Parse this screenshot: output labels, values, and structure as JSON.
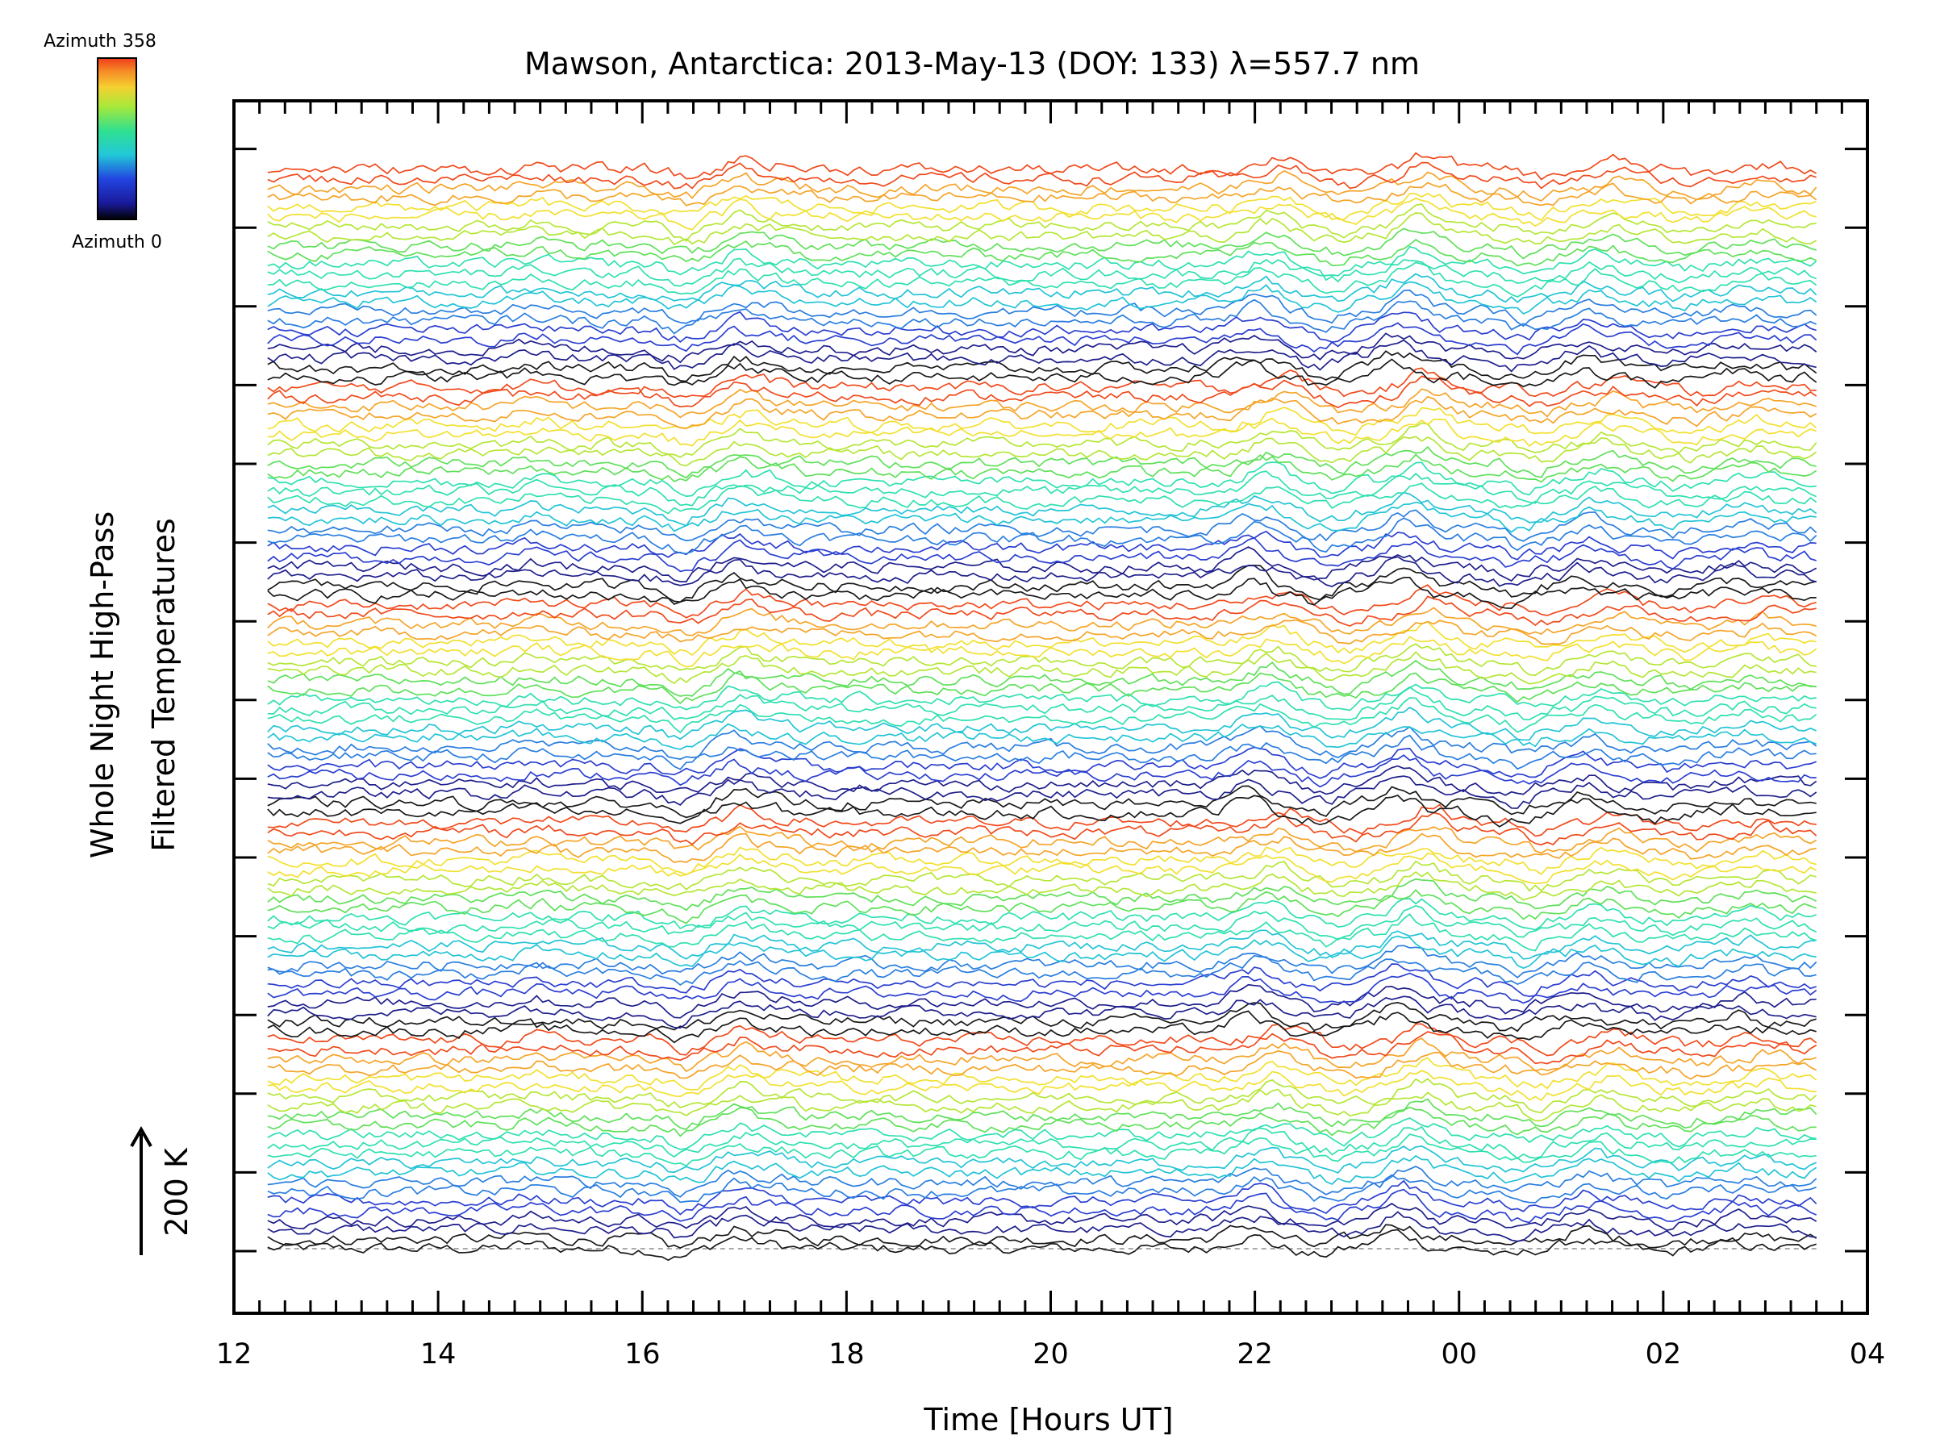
{
  "chart_data": {
    "type": "line",
    "title": "Mawson, Antarctica: 2013-May-13 (DOY: 133) λ=557.7 nm",
    "xlabel": "Time [Hours UT]",
    "ylabel_line1": "Whole Night High-Pass",
    "ylabel_line2": "Filtered Temperatures",
    "scale_label": "200 K",
    "colorbar": {
      "top_label": "Azimuth 358",
      "bottom_label": "Azimuth 0",
      "azimuth_range": [
        0,
        358
      ]
    },
    "x_tick_labels": [
      "12",
      "14",
      "16",
      "18",
      "20",
      "22",
      "00",
      "02",
      "04"
    ],
    "xlim_hours": [
      12,
      28
    ],
    "x_start_hours": 12.33,
    "x_end_hours": 27.5,
    "n_groups": 5,
    "traces_per_group": 23,
    "n_traces_total": 115,
    "features": [
      {
        "hour": 14.9,
        "amp": 0.6
      },
      {
        "hour": 16.35,
        "amp": -1.2
      },
      {
        "hour": 16.9,
        "amp": 1.5
      },
      {
        "hour": 17.25,
        "amp": 0.6
      },
      {
        "hour": 21.8,
        "amp": 0.9
      },
      {
        "hour": 22.0,
        "amp": 1.4
      },
      {
        "hour": 22.6,
        "amp": -1.0
      },
      {
        "hour": 23.3,
        "amp": 1.6
      },
      {
        "hour": 23.5,
        "amp": 1.2
      },
      {
        "hour": 24.5,
        "amp": -1.2
      },
      {
        "hour": 25.2,
        "amp": 1.3
      },
      {
        "hour": 26.0,
        "amp": -0.7
      },
      {
        "hour": 26.7,
        "amp": 0.7
      }
    ],
    "colors": {
      "bin0": "#1a1a1a",
      "bin1": "#1f1f8c",
      "bin2": "#2b3fd0",
      "bin3": "#2a7ee0",
      "bin4": "#22c4d6",
      "bin5": "#2fe0b0",
      "bin6": "#5fe05a",
      "bin7": "#b5e636",
      "bin8": "#f2e030",
      "bin9": "#f5a428",
      "bin10": "#f04a1c",
      "zero_line": "#aaaaaa"
    }
  }
}
